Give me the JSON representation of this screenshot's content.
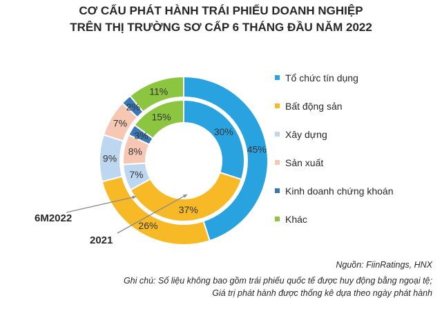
{
  "title_line1": "CƠ CẤU PHÁT HÀNH TRÁI PHIẾU DOANH NGHIỆP",
  "title_line2": "TRÊN THỊ TRƯỜNG SƠ CẤP 6 THÁNG ĐẦU NĂM 2022",
  "source": "Nguồn: FiinRatings, HNX",
  "note_line1": "Ghi chú: Số liệu không bao gồm trái phiếu  quốc tế được huy động bằng ngoại tệ;",
  "note_line2": "Giá trị phát hành được thống kê dựa theo ngày phát hành",
  "chart_data": {
    "type": "donut",
    "categories": [
      "Tổ chức tín dụng",
      "Bất động sản",
      "Xây dựng",
      "Sản xuất",
      "Kinh doanh chứng khoán",
      "Khác"
    ],
    "colors": [
      "#29a3e0",
      "#f7b925",
      "#bcd7ef",
      "#f6c8b4",
      "#3a78b5",
      "#8cc540"
    ],
    "series": [
      {
        "name": "6M2022",
        "ring": "outer",
        "values": [
          45,
          26,
          9,
          7,
          2,
          11
        ],
        "labels": [
          "45%",
          "26%",
          "9%",
          "7%",
          "2%",
          "11%"
        ]
      },
      {
        "name": "2021",
        "ring": "inner",
        "values": [
          30,
          37,
          7,
          8,
          3,
          15
        ],
        "labels": [
          "30%",
          "37%",
          "7%",
          "8%",
          "3%",
          "15%"
        ]
      }
    ],
    "legend_position": "right"
  }
}
